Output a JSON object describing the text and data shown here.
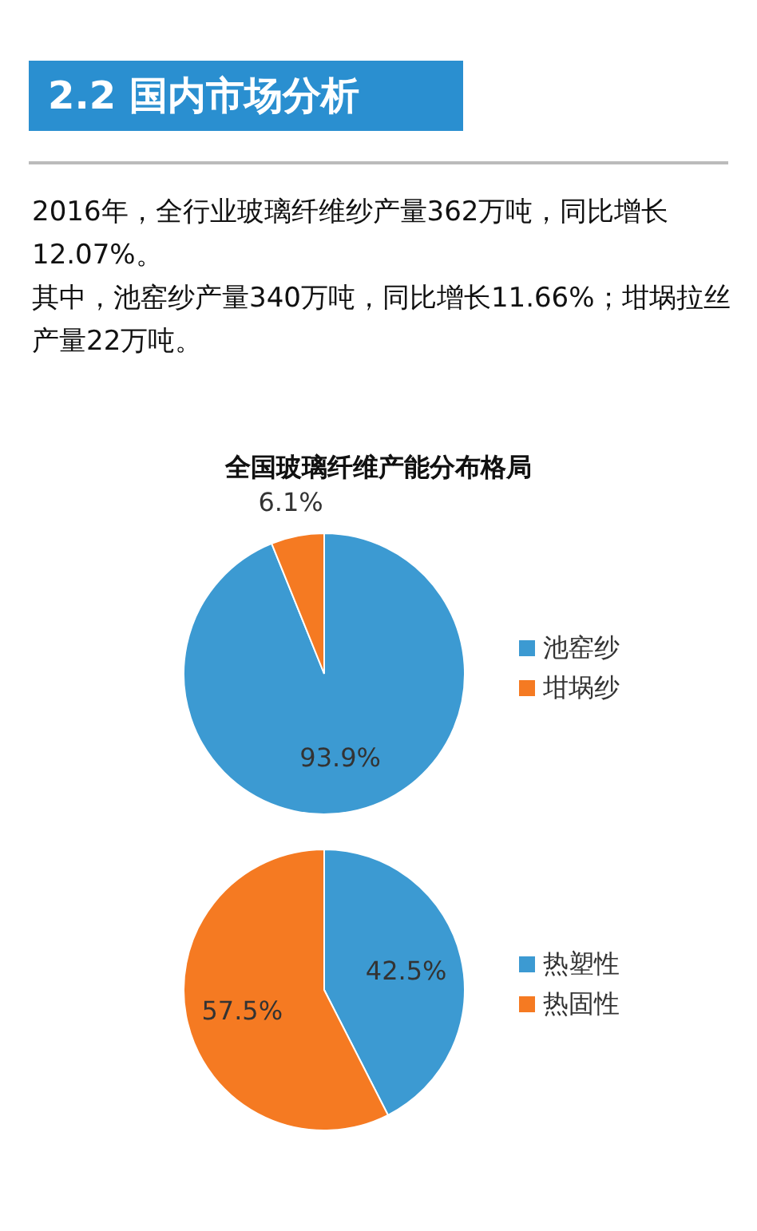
{
  "chart_data": [
    {
      "type": "pie",
      "title": "全国玻璃纤维产能分布格局",
      "annotations": [
        "2.2 国内市场分析",
        "2016年，全行业玻璃纤维纱产量362万吨，同比增长12.07%。",
        "其中，池窑纱产量340万吨，同比增长11.66%；坩埚拉丝产量22万吨。"
      ],
      "categories": [
        "池窑纱",
        "坩埚纱"
      ],
      "values": [
        93.9,
        6.1
      ],
      "colors": [
        "#3c9ad2",
        "#f57a22"
      ],
      "value_labels": [
        "93.9%",
        "6.1%"
      ],
      "legend": "right"
    },
    {
      "type": "pie",
      "categories": [
        "热塑性",
        "热固性"
      ],
      "values": [
        42.5,
        57.5
      ],
      "colors": [
        "#3c9ad2",
        "#f57a22"
      ],
      "value_labels": [
        "42.5%",
        "57.5%"
      ],
      "legend": "right"
    }
  ]
}
